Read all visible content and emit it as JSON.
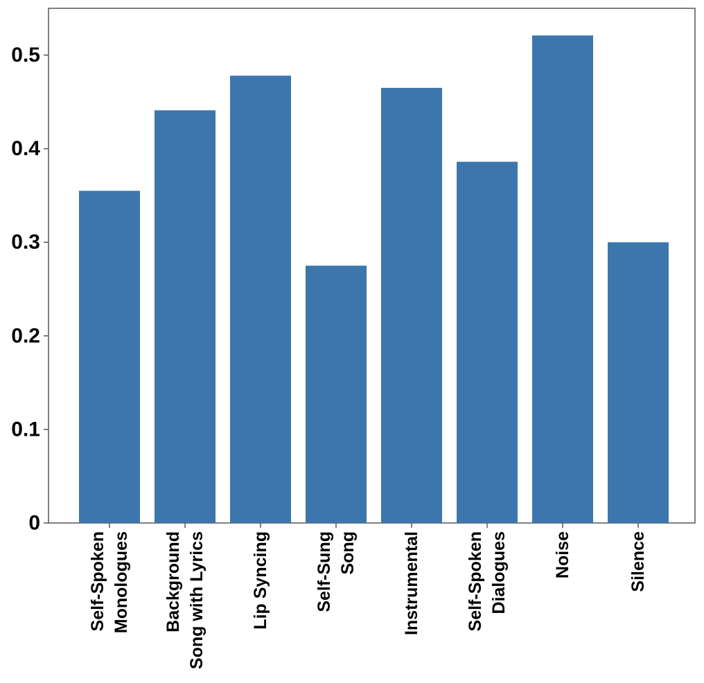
{
  "chart_data": {
    "type": "bar",
    "title": "",
    "xlabel": "",
    "ylabel": "",
    "ylim": [
      0,
      0.55
    ],
    "yticks": [
      "0",
      "0.1",
      "0.2",
      "0.3",
      "0.4",
      "0.5"
    ],
    "grid": false,
    "legend": "none",
    "categories": [
      [
        "Self-Spoken",
        "Monologues"
      ],
      [
        "Background",
        "Song with Lyrics"
      ],
      [
        "Lip Syncing"
      ],
      [
        "Self-Sung",
        "Song"
      ],
      [
        "Instrumental"
      ],
      [
        "Self-Spoken",
        "Dialogues"
      ],
      [
        "Noise"
      ],
      [
        "Silence"
      ]
    ],
    "values": [
      0.355,
      0.441,
      0.478,
      0.275,
      0.465,
      0.386,
      0.521,
      0.3
    ],
    "bar_color": "#3c76ad",
    "axis_color": "#555555"
  }
}
